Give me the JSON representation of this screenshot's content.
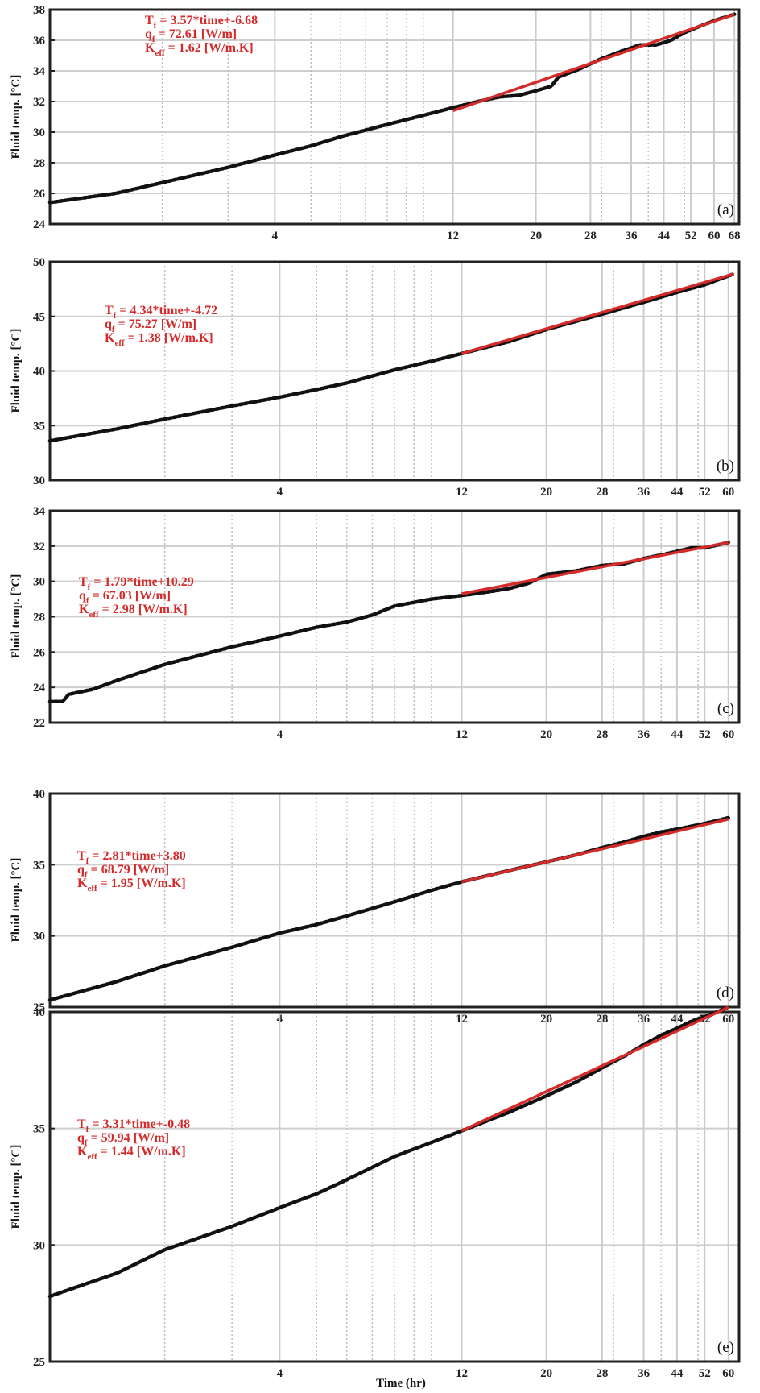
{
  "figure": {
    "xlabel": "Time (hr)",
    "ylabel": "Fluid temp. [°C]",
    "fit_color": "#d42a2a",
    "data_color": "#111111",
    "grid_color": "#cfcfcf"
  },
  "chart_data": [
    {
      "type": "line",
      "panel_label": "(a)",
      "xscale": "log",
      "xlim": [
        1,
        70
      ],
      "ylim": [
        24,
        38
      ],
      "yticks": [
        24,
        26,
        28,
        30,
        32,
        34,
        36,
        38
      ],
      "xticks": [
        4,
        12,
        20,
        28,
        36,
        44,
        52,
        60,
        68
      ],
      "gridlines_x": [
        2,
        3,
        4,
        5,
        6,
        7,
        8,
        9,
        10,
        12,
        20,
        28,
        30,
        36,
        40,
        44,
        50,
        52,
        60,
        68
      ],
      "ylabel": "Fluid temp. [°C]",
      "grid": true,
      "series": [
        {
          "x": [
            1.0,
            1.5,
            2.0,
            3.0,
            4.0,
            5.0,
            6.0,
            8.0,
            10.0,
            12.0,
            14.0,
            16.0,
            18.0,
            20.0,
            22.0,
            23.0,
            26.0,
            30.0,
            34.0,
            36.0,
            38.0,
            42.0,
            46.0,
            50.0,
            56.0,
            62.0,
            68.0
          ],
          "y": [
            25.4,
            26.0,
            26.7,
            27.7,
            28.5,
            29.1,
            29.7,
            30.5,
            31.1,
            31.6,
            32.0,
            32.3,
            32.4,
            32.7,
            33.0,
            33.6,
            34.1,
            34.8,
            35.3,
            35.5,
            35.7,
            35.7,
            36.0,
            36.5,
            37.0,
            37.4,
            37.7
          ]
        },
        {
          "x": [
            12,
            68
          ],
          "y": [
            31.4,
            37.7
          ]
        }
      ],
      "annotation": {
        "eq_main": "T",
        "eq_main_sub": "f",
        "eq_main_rest": " = 3.57*time+-6.68",
        "eq_q": "q",
        "eq_q_sub": "f",
        "eq_q_rest": " = 72.61 [W/m]",
        "eq_k": "K",
        "eq_k_sub": "eff",
        "eq_k_rest": " = 1.62 [W/m.K]"
      }
    },
    {
      "type": "line",
      "panel_label": "(b)",
      "xscale": "log",
      "xlim": [
        1,
        64
      ],
      "ylim": [
        30,
        50
      ],
      "yticks": [
        30,
        35,
        40,
        45,
        50
      ],
      "xticks": [
        4,
        12,
        20,
        28,
        36,
        44,
        52,
        60
      ],
      "gridlines_x": [
        2,
        3,
        4,
        5,
        6,
        7,
        8,
        9,
        10,
        12,
        20,
        28,
        30,
        36,
        40,
        44,
        50,
        52,
        60
      ],
      "ylabel": "Fluid temp. [°C]",
      "grid": true,
      "series": [
        {
          "x": [
            1.0,
            1.5,
            2.0,
            3.0,
            4.0,
            5.0,
            6.0,
            8.0,
            10.0,
            12.0,
            16.0,
            20.0,
            28.0,
            36.0,
            44.0,
            52.0,
            62.0
          ],
          "y": [
            33.6,
            34.7,
            35.6,
            36.8,
            37.6,
            38.3,
            38.9,
            40.1,
            40.9,
            41.6,
            42.7,
            43.8,
            45.2,
            46.3,
            47.2,
            47.9,
            48.9
          ]
        },
        {
          "x": [
            12,
            62
          ],
          "y": [
            41.6,
            48.9
          ]
        }
      ],
      "annotation": {
        "eq_main": "T",
        "eq_main_sub": "f",
        "eq_main_rest": " = 4.34*time+-4.72",
        "eq_q": "q",
        "eq_q_sub": "f",
        "eq_q_rest": " = 75.27 [W/m]",
        "eq_k": "K",
        "eq_k_sub": "eff",
        "eq_k_rest": " = 1.38 [W/m.K]"
      }
    },
    {
      "type": "line",
      "panel_label": "(c)",
      "xscale": "log",
      "xlim": [
        1,
        64
      ],
      "ylim": [
        22,
        34
      ],
      "yticks": [
        22,
        24,
        26,
        28,
        30,
        32,
        34
      ],
      "xticks": [
        4,
        12,
        20,
        28,
        36,
        44,
        52,
        60
      ],
      "gridlines_x": [
        2,
        3,
        4,
        5,
        6,
        7,
        8,
        9,
        10,
        12,
        20,
        28,
        30,
        36,
        40,
        44,
        50,
        52,
        60
      ],
      "ylabel": "Fluid temp. [°C]",
      "grid": true,
      "series": [
        {
          "x": [
            1.0,
            1.08,
            1.12,
            1.3,
            1.5,
            2.0,
            3.0,
            4.0,
            5.0,
            6.0,
            7.0,
            8.0,
            10.0,
            12.0,
            14.0,
            16.0,
            18.0,
            20.0,
            24.0,
            28.0,
            32.0,
            36.0,
            40.0,
            44.0,
            48.0,
            52.0,
            60.0
          ],
          "y": [
            23.2,
            23.2,
            23.6,
            23.9,
            24.4,
            25.3,
            26.3,
            26.9,
            27.4,
            27.7,
            28.1,
            28.6,
            29.0,
            29.2,
            29.4,
            29.6,
            29.9,
            30.4,
            30.6,
            30.9,
            31.0,
            31.3,
            31.5,
            31.7,
            31.9,
            31.9,
            32.2
          ]
        },
        {
          "x": [
            12,
            60
          ],
          "y": [
            29.3,
            32.2
          ]
        }
      ],
      "annotation": {
        "eq_main": "T",
        "eq_main_sub": "f",
        "eq_main_rest": " = 1.79*time+10.29",
        "eq_q": "q",
        "eq_q_sub": "f",
        "eq_q_rest": " = 67.03 [W/m]",
        "eq_k": "K",
        "eq_k_sub": "eff",
        "eq_k_rest": " = 2.98 [W/m.K]"
      }
    },
    {
      "type": "line",
      "panel_label": "(d)",
      "xscale": "log",
      "xlim": [
        1,
        64
      ],
      "ylim": [
        25,
        40
      ],
      "yticks": [
        25,
        30,
        35,
        40
      ],
      "xticks": [
        4,
        12,
        20,
        28,
        36,
        44,
        52,
        60
      ],
      "gridlines_x": [
        2,
        3,
        4,
        5,
        6,
        7,
        8,
        9,
        10,
        12,
        20,
        28,
        30,
        36,
        40,
        44,
        50,
        52,
        60
      ],
      "ylabel": "Fluid temp. [°C]",
      "grid": true,
      "series": [
        {
          "x": [
            1.0,
            1.5,
            2.0,
            3.0,
            4.0,
            5.0,
            6.0,
            8.0,
            10.0,
            12.0,
            16.0,
            20.0,
            24.0,
            28.0,
            32.0,
            36.0,
            40.0,
            44.0,
            48.0,
            52.0,
            56.0,
            60.0
          ],
          "y": [
            25.5,
            26.8,
            27.9,
            29.2,
            30.2,
            30.8,
            31.4,
            32.4,
            33.2,
            33.8,
            34.6,
            35.2,
            35.7,
            36.2,
            36.6,
            37.0,
            37.3,
            37.5,
            37.7,
            37.9,
            38.1,
            38.3
          ]
        },
        {
          "x": [
            12,
            60
          ],
          "y": [
            33.8,
            38.2
          ]
        }
      ],
      "annotation": {
        "eq_main": "T",
        "eq_main_sub": "f",
        "eq_main_rest": " = 2.81*time+3.80",
        "eq_q": "q",
        "eq_q_sub": "f",
        "eq_q_rest": " = 68.79 [W/m]",
        "eq_k": "K",
        "eq_k_sub": "eff",
        "eq_k_rest": " = 1.95 [W/m.K]"
      }
    },
    {
      "type": "line",
      "panel_label": "(e)",
      "xscale": "log",
      "xlim": [
        1,
        64
      ],
      "ylim": [
        25,
        40
      ],
      "yticks": [
        25,
        30,
        35,
        40
      ],
      "xticks": [
        4,
        12,
        20,
        28,
        36,
        44,
        52,
        60
      ],
      "gridlines_x": [
        2,
        3,
        4,
        5,
        6,
        7,
        8,
        9,
        10,
        12,
        20,
        28,
        30,
        36,
        40,
        44,
        50,
        52,
        60
      ],
      "xlabel": "Time (hr)",
      "ylabel": "Fluid temp. [°C]",
      "grid": true,
      "series": [
        {
          "x": [
            1.0,
            1.5,
            2.0,
            3.0,
            4.0,
            5.0,
            6.0,
            8.0,
            10.0,
            12.0,
            16.0,
            20.0,
            24.0,
            28.0,
            32.0,
            36.0,
            40.0,
            44.0,
            48.0,
            52.0,
            56.0,
            60.0
          ],
          "y": [
            27.8,
            28.8,
            29.8,
            30.8,
            31.6,
            32.2,
            32.8,
            33.8,
            34.4,
            34.9,
            35.7,
            36.4,
            37.0,
            37.6,
            38.1,
            38.6,
            39.0,
            39.3,
            39.6,
            39.8,
            40.0,
            40.2
          ]
        },
        {
          "x": [
            12,
            60
          ],
          "y": [
            34.9,
            40.2
          ]
        }
      ],
      "annotation": {
        "eq_main": "T",
        "eq_main_sub": "f",
        "eq_main_rest": " = 3.31*time+-0.48",
        "eq_q": "q",
        "eq_q_sub": "f",
        "eq_q_rest": " = 59.94 [W/m]",
        "eq_k": "K",
        "eq_k_sub": "eff",
        "eq_k_rest": " = 1.44 [W/m.K]"
      }
    }
  ]
}
